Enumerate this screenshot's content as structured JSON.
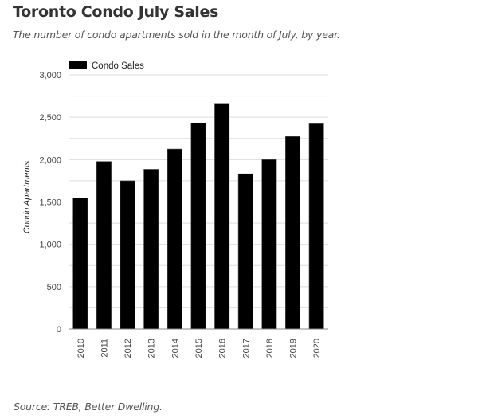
{
  "header": {
    "title": "Toronto Condo July Sales",
    "subtitle": "The number of condo apartments sold in the month of July, by year."
  },
  "footer": {
    "source": "Source: TREB, Better Dwelling."
  },
  "chart_data": {
    "type": "bar",
    "title": "Toronto Condo July Sales",
    "subtitle": "The number of condo apartments sold in the month of July, by year.",
    "xlabel": "",
    "ylabel": "Condo Apartments",
    "categories": [
      "2010",
      "2011",
      "2012",
      "2013",
      "2014",
      "2015",
      "2016",
      "2017",
      "2018",
      "2019",
      "2020"
    ],
    "series": [
      {
        "name": "Condo Sales",
        "color": "#000000",
        "values": [
          1545,
          1978,
          1750,
          1886,
          2125,
          2433,
          2664,
          1832,
          2000,
          2273,
          2423
        ]
      }
    ],
    "ylim": [
      0,
      3000
    ],
    "yticks": [
      0,
      500,
      1000,
      1500,
      2000,
      2500,
      3000
    ],
    "ytick_labels": [
      "0",
      "500",
      "1,000",
      "1,500",
      "2,000",
      "2,500",
      "3,000"
    ],
    "minor_gridline_step": 250,
    "grid": true,
    "legend": {
      "position": "top-left",
      "entries": [
        "Condo Sales"
      ]
    },
    "xtick_rotation": "vertical",
    "gridline_color": "#dddddd",
    "axis_color": "#888888"
  }
}
